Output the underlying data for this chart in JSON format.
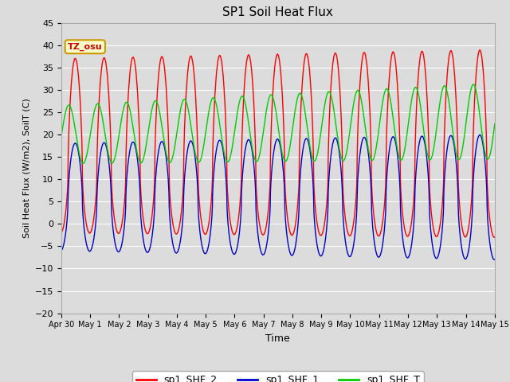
{
  "title": "SP1 Soil Heat Flux",
  "xlabel": "Time",
  "ylabel": "Soil Heat Flux (W/m2), SoilT (C)",
  "ylim": [
    -20,
    45
  ],
  "yticks": [
    -20,
    -15,
    -10,
    -5,
    0,
    5,
    10,
    15,
    20,
    25,
    30,
    35,
    40,
    45
  ],
  "bg_color": "#dcdcdc",
  "line_colors": {
    "shf2": "#ff0000",
    "shf1": "#0000cc",
    "shft": "#00cc00"
  },
  "legend_labels": [
    "sp1_SHF_2",
    "sp1_SHF_1",
    "sp1_SHF_T"
  ],
  "tz_label": "TZ_osu",
  "tz_box_color": "#ffffcc",
  "tz_border_color": "#cc9900",
  "tz_text_color": "#cc0000",
  "x_tick_labels": [
    "Apr 30",
    "May 1",
    "May 2",
    "May 3",
    "May 4",
    "May 5",
    "May 6",
    "May 7",
    "May 8",
    "May 9",
    "May 10",
    "May 11",
    "May 12",
    "May 13",
    "May 14",
    "May 15"
  ]
}
